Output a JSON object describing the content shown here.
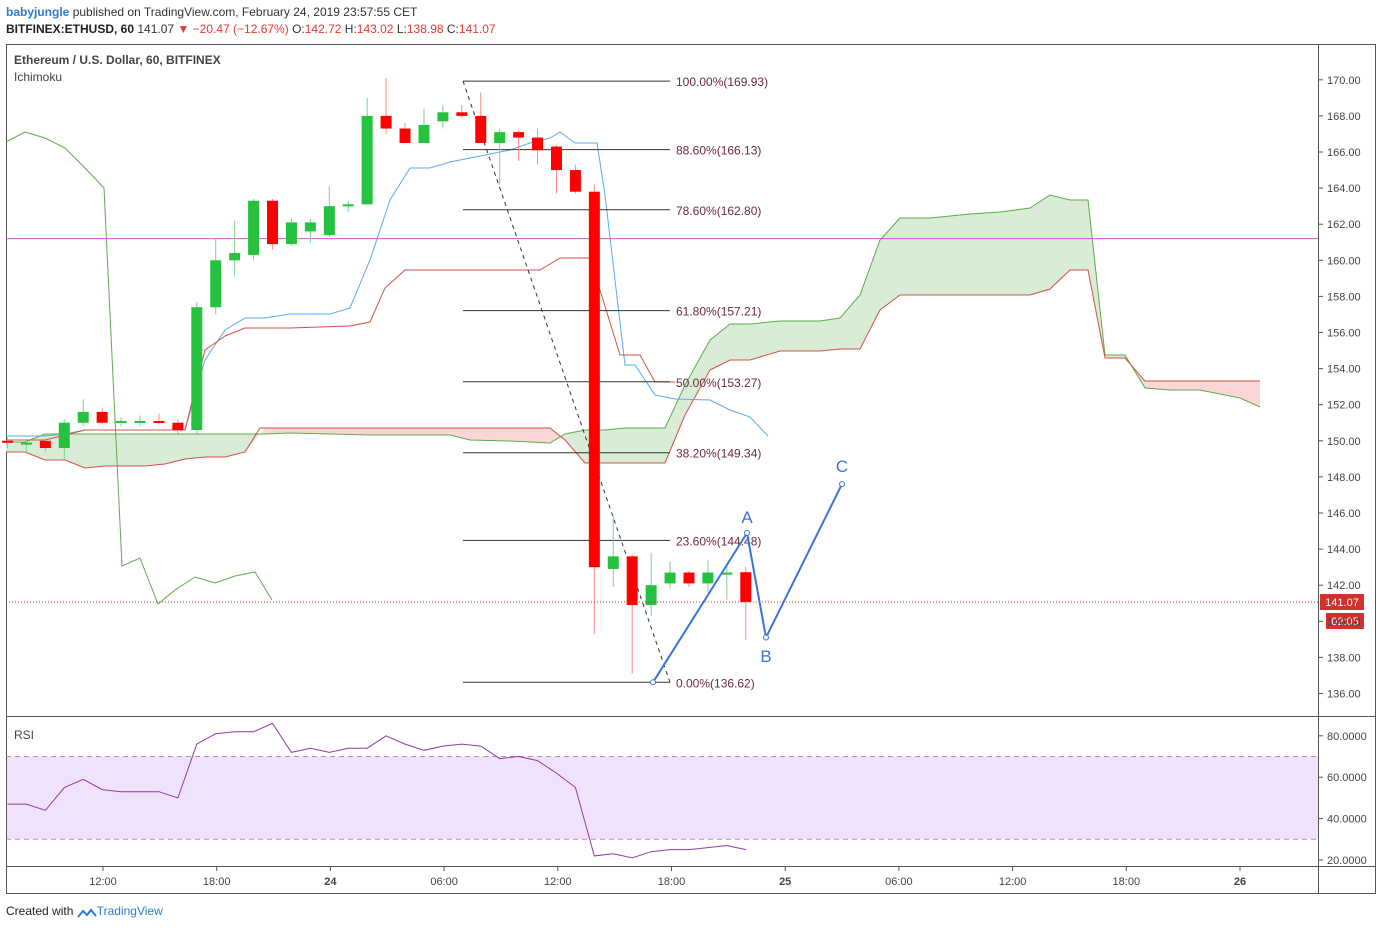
{
  "header": {
    "author": "babyjungle",
    "published": "published on TradingView.com, February 24, 2019 23:57:55 CET",
    "symbol": "BITFINEX:ETHUSD, 60",
    "last": "141.07",
    "arrow": "▼",
    "change": "−20.47 (−12.67%)",
    "o_label": "O:",
    "o": "142.72",
    "h_label": "H:",
    "h": "143.02",
    "l_label": "L:",
    "l": "138.98",
    "c_label": "C:",
    "c": "141.07"
  },
  "footer": {
    "created": "Created with",
    "brand": "TradingView"
  },
  "chart_data": [
    {
      "type": "candlestick",
      "title": "Ethereum / U.S. Dollar, 60, BITFINEX",
      "indicator": "Ichimoku",
      "ylim": [
        135,
        171
      ],
      "yticks": [
        "136.00",
        "138.00",
        "140.00",
        "142.00",
        "144.00",
        "146.00",
        "148.00",
        "150.00",
        "152.00",
        "154.00",
        "156.00",
        "158.00",
        "160.00",
        "162.00",
        "164.00",
        "166.00",
        "168.00",
        "170.00"
      ],
      "xticks": [
        "12:00",
        "18:00",
        "24",
        "06:00",
        "12:00",
        "18:00",
        "25",
        "06:00",
        "12:00",
        "18:00",
        "26"
      ],
      "colors": {
        "up": "#26c13f",
        "down": "#ff0000",
        "conversion": "#5aaaf0",
        "base": "#d0504a",
        "lagging": "#5cab4e",
        "cloud_up": "#d8ecd6",
        "cloud_down": "#fbd6d6",
        "level": "#d154d6",
        "wave": "#3a74d6",
        "price": "#d32f2f"
      },
      "candles": [
        {
          "o": 150.0,
          "h": 150.2,
          "l": 149.6,
          "c": 149.9
        },
        {
          "o": 149.9,
          "h": 150.1,
          "l": 149.3,
          "c": 149.9
        },
        {
          "o": 150.0,
          "h": 150.1,
          "l": 149.4,
          "c": 149.6
        },
        {
          "o": 149.6,
          "h": 151.2,
          "l": 149.0,
          "c": 151.0
        },
        {
          "o": 151.0,
          "h": 152.3,
          "l": 150.8,
          "c": 151.6
        },
        {
          "o": 151.6,
          "h": 151.8,
          "l": 150.9,
          "c": 151.0
        },
        {
          "o": 151.0,
          "h": 151.3,
          "l": 150.8,
          "c": 151.1
        },
        {
          "o": 151.0,
          "h": 151.4,
          "l": 150.8,
          "c": 151.1
        },
        {
          "o": 151.1,
          "h": 151.5,
          "l": 150.9,
          "c": 151.0
        },
        {
          "o": 151.0,
          "h": 151.2,
          "l": 150.4,
          "c": 150.6
        },
        {
          "o": 150.6,
          "h": 157.7,
          "l": 150.4,
          "c": 157.4
        },
        {
          "o": 157.4,
          "h": 161.2,
          "l": 157.0,
          "c": 160.0
        },
        {
          "o": 160.0,
          "h": 162.2,
          "l": 159.1,
          "c": 160.4
        },
        {
          "o": 160.3,
          "h": 163.4,
          "l": 160.0,
          "c": 163.3
        },
        {
          "o": 163.3,
          "h": 163.4,
          "l": 160.6,
          "c": 160.9
        },
        {
          "o": 160.9,
          "h": 162.3,
          "l": 160.8,
          "c": 162.1
        },
        {
          "o": 161.6,
          "h": 162.3,
          "l": 161.0,
          "c": 162.1
        },
        {
          "o": 161.4,
          "h": 164.1,
          "l": 161.3,
          "c": 163.0
        },
        {
          "o": 163.1,
          "h": 163.3,
          "l": 162.7,
          "c": 163.1
        },
        {
          "o": 163.1,
          "h": 169.0,
          "l": 163.1,
          "c": 168.0
        },
        {
          "o": 168.0,
          "h": 170.1,
          "l": 167.0,
          "c": 167.3
        },
        {
          "o": 167.3,
          "h": 167.6,
          "l": 166.5,
          "c": 166.5
        },
        {
          "o": 166.5,
          "h": 168.4,
          "l": 166.5,
          "c": 167.5
        },
        {
          "o": 167.7,
          "h": 168.6,
          "l": 167.3,
          "c": 168.2
        },
        {
          "o": 168.2,
          "h": 168.6,
          "l": 167.9,
          "c": 168.0
        },
        {
          "o": 168.0,
          "h": 169.3,
          "l": 166.5,
          "c": 166.5
        },
        {
          "o": 166.5,
          "h": 167.3,
          "l": 164.2,
          "c": 167.1
        },
        {
          "o": 167.1,
          "h": 167.2,
          "l": 165.5,
          "c": 166.8
        },
        {
          "o": 166.8,
          "h": 167.3,
          "l": 165.3,
          "c": 166.1
        },
        {
          "o": 166.3,
          "h": 166.4,
          "l": 163.7,
          "c": 165.0
        },
        {
          "o": 165.0,
          "h": 165.3,
          "l": 163.7,
          "c": 163.8
        },
        {
          "o": 163.8,
          "h": 164.2,
          "l": 139.3,
          "c": 143.0
        },
        {
          "o": 142.9,
          "h": 145.9,
          "l": 141.9,
          "c": 143.6
        },
        {
          "o": 143.6,
          "h": 143.7,
          "l": 137.1,
          "c": 140.9
        },
        {
          "o": 140.9,
          "h": 143.8,
          "l": 140.3,
          "c": 142.0
        },
        {
          "o": 142.1,
          "h": 143.3,
          "l": 141.8,
          "c": 142.7
        },
        {
          "o": 142.7,
          "h": 142.8,
          "l": 141.9,
          "c": 142.1
        },
        {
          "o": 142.1,
          "h": 143.4,
          "l": 141.6,
          "c": 142.7
        },
        {
          "o": 142.7,
          "h": 143.2,
          "l": 141.2,
          "c": 142.7
        },
        {
          "o": 142.72,
          "h": 143.02,
          "l": 138.98,
          "c": 141.07
        }
      ],
      "fibonacci": [
        {
          "label": "100.00%(169.93)",
          "value": 169.93
        },
        {
          "label": "88.60%(166.13)",
          "value": 166.13
        },
        {
          "label": "78.60%(162.80)",
          "value": 162.8
        },
        {
          "label": "61.80%(157.21)",
          "value": 157.21
        },
        {
          "label": "50.00%(153.27)",
          "value": 153.27
        },
        {
          "label": "38.20%(149.34)",
          "value": 149.34
        },
        {
          "label": "23.60%(144.48)",
          "value": 144.48
        },
        {
          "label": "0.00%(136.62)",
          "value": 136.62
        }
      ],
      "horizontal_level": 161.2,
      "wave_labels": [
        "A",
        "B",
        "C"
      ],
      "wave_points": [
        136.62,
        144.9,
        139.1,
        147.6
      ],
      "price_label": "141.07",
      "timer_label": "02:05"
    },
    {
      "type": "line",
      "title": "RSI",
      "ylim": [
        18,
        85
      ],
      "yticks": [
        "20.0000",
        "40.0000",
        "60.0000",
        "80.0000"
      ],
      "band": [
        30,
        70
      ],
      "color": "#8e3aa8",
      "values": [
        47,
        47,
        44,
        55,
        59,
        54,
        53,
        53,
        53,
        50,
        76,
        81,
        82,
        82,
        86,
        72,
        74,
        72,
        74,
        74,
        80,
        76,
        73,
        75,
        76,
        75,
        69,
        70,
        68,
        62,
        55,
        22,
        23,
        21,
        24,
        25,
        25,
        26,
        27,
        25
      ]
    }
  ]
}
